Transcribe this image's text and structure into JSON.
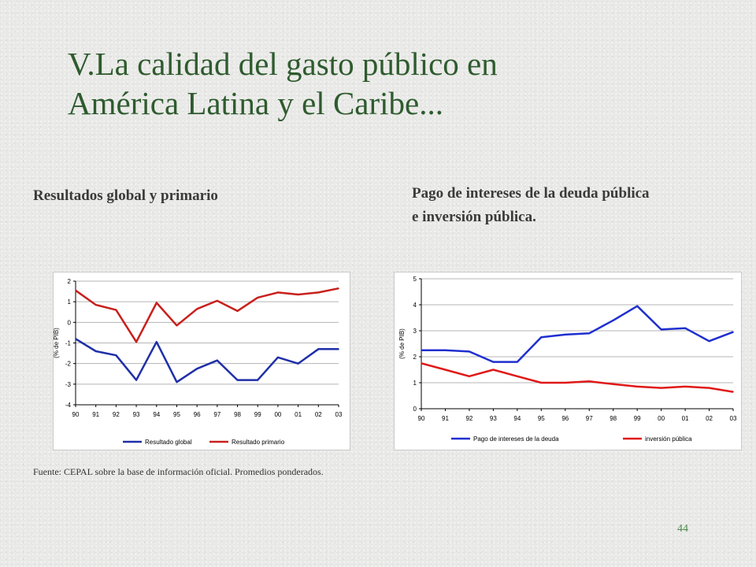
{
  "slide": {
    "title_line1": "V.La calidad del gasto público en",
    "title_line2": "América Latina y el Caribe...",
    "subtitle_left": "Resultados global y primario",
    "subtitle_right_line1": "Pago de intereses de la deuda pública",
    "subtitle_right_line2": "e inversión pública.",
    "source": "Fuente: CEPAL sobre la base de información oficial. Promedios ponderados.",
    "page_number": "44"
  },
  "chart_data": [
    {
      "type": "line",
      "ylabel": "(% de PIB)",
      "xlabel": "",
      "categories": [
        "90",
        "91",
        "92",
        "93",
        "94",
        "95",
        "96",
        "97",
        "98",
        "99",
        "00",
        "01",
        "02",
        "03"
      ],
      "ylim": [
        -4,
        2
      ],
      "yticks": [
        2,
        1,
        0,
        -1,
        -2,
        -3,
        -4
      ],
      "grid": true,
      "legend_position": "bottom",
      "series": [
        {
          "name": "Resultado global",
          "color": "#1f2fa8",
          "values": [
            -0.8,
            -1.4,
            -1.6,
            -2.8,
            -0.95,
            -2.9,
            -2.25,
            -1.85,
            -2.8,
            -2.8,
            -1.7,
            -2.0,
            -1.3,
            -1.3
          ]
        },
        {
          "name": "Resultado primario",
          "color": "#c8201c",
          "values": [
            1.55,
            0.85,
            0.6,
            -0.95,
            0.95,
            -0.15,
            0.65,
            1.05,
            0.55,
            1.2,
            1.45,
            1.35,
            1.45,
            1.65
          ]
        }
      ]
    },
    {
      "type": "line",
      "ylabel": "(% de PIB)",
      "xlabel": "",
      "categories": [
        "90",
        "91",
        "92",
        "93",
        "94",
        "95",
        "96",
        "97",
        "98",
        "99",
        "00",
        "01",
        "02",
        "03"
      ],
      "ylim": [
        0,
        5
      ],
      "yticks": [
        5,
        4,
        3,
        2,
        1,
        0
      ],
      "grid": true,
      "legend_position": "bottom",
      "series": [
        {
          "name": "Pago de intereses de la deuda",
          "color": "#1f2fcf",
          "values": [
            2.25,
            2.25,
            2.2,
            1.8,
            1.8,
            2.75,
            2.85,
            2.9,
            3.4,
            3.95,
            3.05,
            3.1,
            2.6,
            2.95
          ]
        },
        {
          "name": "inversión pública",
          "color": "#e01818",
          "values": [
            1.75,
            1.5,
            1.25,
            1.5,
            1.25,
            1.0,
            1.0,
            1.05,
            0.95,
            0.85,
            0.8,
            0.85,
            0.8,
            0.65
          ]
        }
      ]
    }
  ]
}
